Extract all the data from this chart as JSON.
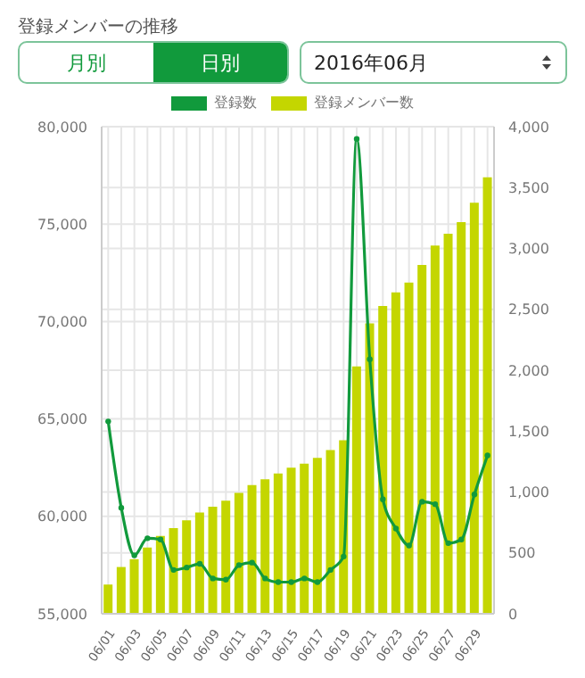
{
  "chart_data": {
    "type": "bar",
    "title": "登録メンバーの推移",
    "annotations": [
      "月別",
      "日別",
      "2016年06月"
    ],
    "categories": [
      "06/01",
      null,
      "06/03",
      null,
      "06/05",
      null,
      "06/07",
      null,
      "06/09",
      null,
      "06/11",
      null,
      "06/13",
      null,
      "06/15",
      null,
      "06/17",
      null,
      "06/19",
      null,
      "06/21",
      null,
      "06/23",
      null,
      "06/25",
      null,
      "06/27",
      null,
      "06/29",
      null
    ],
    "series": [
      {
        "name": "登録数",
        "type": "line",
        "axis": "y2",
        "color": "#119a3c",
        "values": [
          1580,
          870,
          480,
          620,
          610,
          360,
          380,
          410,
          290,
          280,
          400,
          420,
          290,
          260,
          260,
          290,
          260,
          360,
          470,
          3900,
          2090,
          940,
          700,
          560,
          920,
          900,
          580,
          610,
          980,
          1300
        ]
      },
      {
        "name": "登録メンバー数",
        "color": "#c4d600",
        "values": [
          56500,
          57400,
          57800,
          58400,
          59000,
          59400,
          59800,
          60200,
          60500,
          60800,
          61200,
          61600,
          61900,
          62200,
          62500,
          62700,
          63000,
          63400,
          63900,
          67700,
          69900,
          70800,
          71500,
          72000,
          72900,
          73900,
          74500,
          75100,
          76100,
          77400
        ]
      }
    ],
    "ylim": [
      55000,
      80000
    ],
    "yticks": [
      {
        "value": 55000,
        "label": "55,000"
      },
      {
        "value": 60000,
        "label": "60,000"
      },
      {
        "value": 65000,
        "label": "65,000"
      },
      {
        "value": 70000,
        "label": "70,000"
      },
      {
        "value": 75000,
        "label": "75,000"
      },
      {
        "value": 80000,
        "label": "80,000"
      }
    ],
    "y2lim": [
      0,
      4000
    ],
    "y2ticks": [
      0,
      500,
      {
        "value": 1000,
        "label": "1,000"
      },
      {
        "value": 1500,
        "label": "1,500"
      },
      {
        "value": 2000,
        "label": "2,000"
      },
      {
        "value": 2500,
        "label": "2,500"
      },
      {
        "value": 3000,
        "label": "3,000"
      },
      {
        "value": 3500,
        "label": "3,500"
      },
      {
        "value": 4000,
        "label": "4,000"
      }
    ],
    "grid": true,
    "legend": "top",
    "marker": "circle",
    "line_style": "solid"
  }
}
